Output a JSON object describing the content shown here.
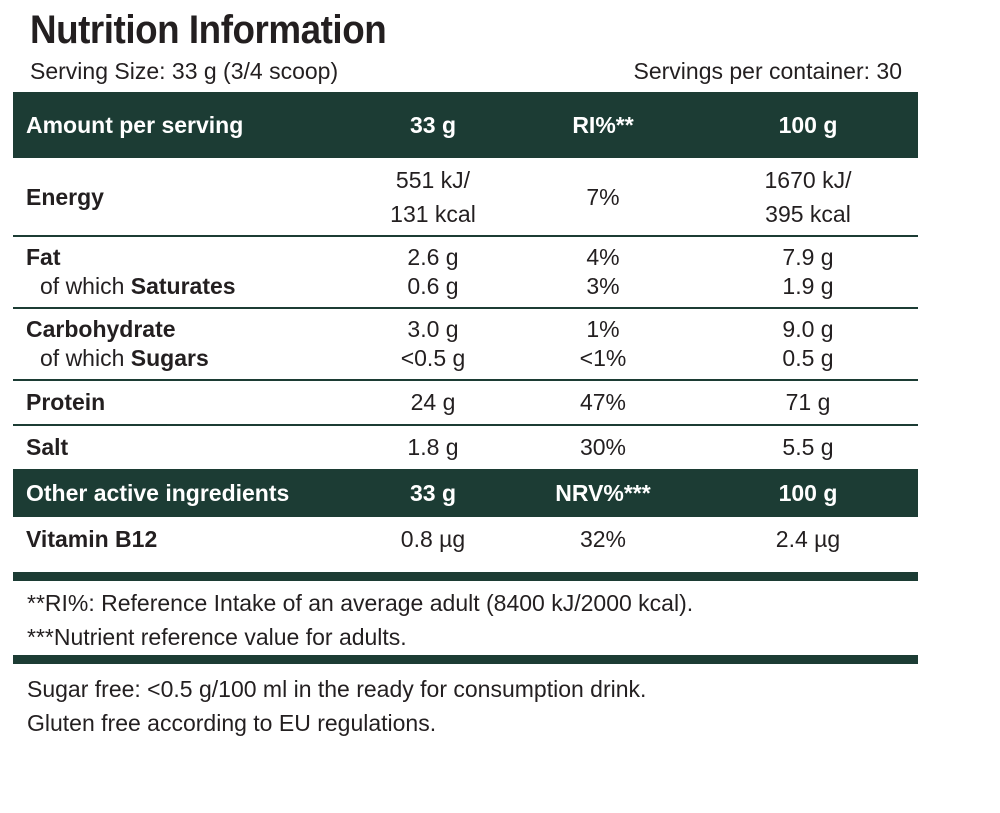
{
  "title": "Nutrition Information",
  "serving_size": "Serving Size: 33 g (3/4 scoop)",
  "servings_per_container": "Servings per container: 30",
  "header": {
    "label": "Amount per serving",
    "col1": "33 g",
    "col2": "RI%**",
    "col3": "100 g"
  },
  "rows": {
    "energy": {
      "label": "Energy",
      "v1a": "551 kJ/",
      "v1b": "131 kcal",
      "ri": "7%",
      "v3a": "1670 kJ/",
      "v3b": "395 kcal"
    },
    "fat": {
      "label": "Fat",
      "v1": "2.6 g",
      "ri": "4%",
      "v3": "7.9 g"
    },
    "saturates": {
      "prefix": "of which ",
      "label": "Saturates",
      "v1": "0.6 g",
      "ri": "3%",
      "v3": "1.9 g"
    },
    "carbohydrate": {
      "label": "Carbohydrate",
      "v1": "3.0 g",
      "ri": "1%",
      "v3": "9.0 g"
    },
    "sugars": {
      "prefix": "of which ",
      "label": "Sugars",
      "v1": "<0.5 g",
      "ri": "<1%",
      "v3": "0.5 g"
    },
    "protein": {
      "label": "Protein",
      "v1": "24 g",
      "ri": "47%",
      "v3": "71 g"
    },
    "salt": {
      "label": "Salt",
      "v1": "1.8 g",
      "ri": "30%",
      "v3": "5.5 g"
    }
  },
  "header2": {
    "label": "Other active ingredients",
    "col1": "33 g",
    "col2": "NRV%***",
    "col3": "100 g"
  },
  "vitamin": {
    "label": "Vitamin B12",
    "v1": "0.8 µg",
    "nrv": "32%",
    "v3": "2.4 µg"
  },
  "footnotes": {
    "ri": "**RI%: Reference Intake of an average adult (8400 kJ/2000 kcal).",
    "nrv": "***Nutrient reference value for adults."
  },
  "notes": {
    "sugar_free": "Sugar free: <0.5 g/100 ml in the ready for consumption drink.",
    "gluten_free": "Gluten free according to EU regulations."
  },
  "colors": {
    "header_bg": "#1c3c34",
    "text": "#231f20",
    "background": "#ffffff"
  }
}
